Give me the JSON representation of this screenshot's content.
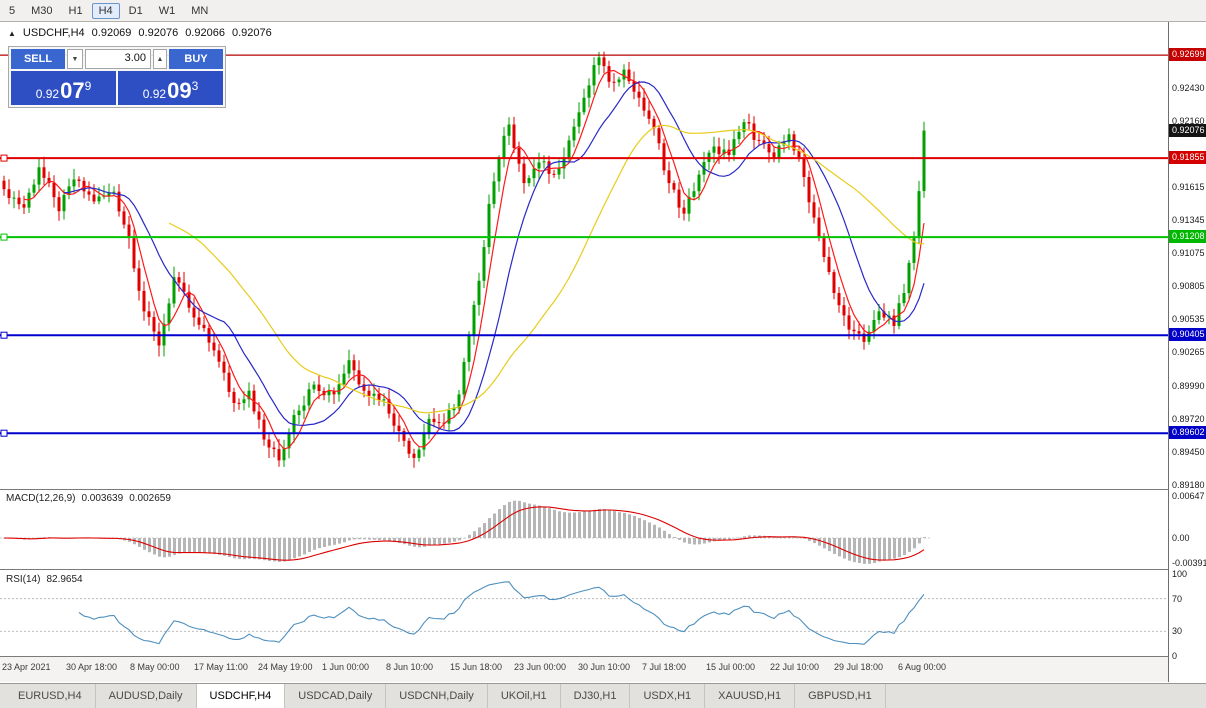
{
  "toolbar": {
    "timeframes": [
      {
        "label": "5",
        "active": false
      },
      {
        "label": "M30",
        "active": false
      },
      {
        "label": "H1",
        "active": false
      },
      {
        "label": "H4",
        "active": true
      },
      {
        "label": "D1",
        "active": false
      },
      {
        "label": "W1",
        "active": false
      },
      {
        "label": "MN",
        "active": false
      }
    ]
  },
  "chart_header": {
    "symbol": "USDCHF,H4",
    "open": "0.92069",
    "high": "0.92076",
    "low": "0.92066",
    "close": "0.92076"
  },
  "trade_panel": {
    "sell_label": "SELL",
    "buy_label": "BUY",
    "volume": "3.00",
    "sell_price": {
      "prefix": "0.92",
      "big": "07",
      "sup": "9"
    },
    "buy_price": {
      "prefix": "0.92",
      "big": "09",
      "sup": "3"
    }
  },
  "price_axis": {
    "ticks": [
      "0.92430",
      "0.92160",
      "0.91615",
      "0.91345",
      "0.91075",
      "0.90805",
      "0.90535",
      "0.90265",
      "0.89990",
      "0.89720",
      "0.89450",
      "0.89180"
    ],
    "badges": [
      {
        "value": "0.92699",
        "color": "#c40000"
      },
      {
        "value": "0.92076",
        "color": "#141414"
      },
      {
        "value": "0.91855",
        "color": "#d40000"
      },
      {
        "value": "0.91208",
        "color": "#00b800"
      },
      {
        "value": "0.90405",
        "color": "#0000c8"
      },
      {
        "value": "0.89602",
        "color": "#0000c8"
      }
    ]
  },
  "hlines": [
    {
      "value": 0.92699,
      "color": "#b40000",
      "width": 1.2,
      "handle": false
    },
    {
      "value": 0.91855,
      "color": "#e00000",
      "width": 2,
      "handle": true
    },
    {
      "value": 0.91208,
      "color": "#00c400",
      "width": 2,
      "handle": true
    },
    {
      "value": 0.90405,
      "color": "#0000cd",
      "width": 2,
      "handle": true
    },
    {
      "value": 0.89602,
      "color": "#0000cd",
      "width": 2,
      "handle": true
    }
  ],
  "macd": {
    "label": "MACD(12,26,9)",
    "value_main": "0.003639",
    "value_signal": "0.002659",
    "axis": [
      "0.00647",
      "0.00",
      "-0.00391"
    ]
  },
  "rsi": {
    "label": "RSI(14)",
    "value": "82.9654",
    "axis": [
      "100",
      "70",
      "30",
      "0"
    ],
    "levels": [
      70,
      30
    ]
  },
  "time_axis": {
    "labels": [
      "23 Apr 2021",
      "30 Apr 18:00",
      "8 May 00:00",
      "17 May 11:00",
      "24 May 19:00",
      "1 Jun 00:00",
      "8 Jun 10:00",
      "15 Jun 18:00",
      "23 Jun 00:00",
      "30 Jun 10:00",
      "7 Jul 18:00",
      "15 Jul 00:00",
      "22 Jul 10:00",
      "29 Jul 18:00",
      "6 Aug 00:00"
    ]
  },
  "tabs": {
    "items": [
      {
        "label": "EURUSD,H4",
        "active": false
      },
      {
        "label": "AUDUSD,Daily",
        "active": false
      },
      {
        "label": "USDCHF,H4",
        "active": true
      },
      {
        "label": "USDCAD,Daily",
        "active": false
      },
      {
        "label": "USDCNH,Daily",
        "active": false
      },
      {
        "label": "UKOil,H1",
        "active": false
      },
      {
        "label": "DJ30,H1",
        "active": false
      },
      {
        "label": "USDX,H1",
        "active": false
      },
      {
        "label": "XAUUSD,H1",
        "active": false
      },
      {
        "label": "GBPUSD,H1",
        "active": false
      }
    ]
  },
  "chart_data": {
    "type": "candlestick",
    "symbol": "USDCHF",
    "timeframe": "H4",
    "num_candles": 185,
    "y_range": [
      0.89145,
      0.92937
    ],
    "price_anchors": [
      [
        0,
        0.916
      ],
      [
        4,
        0.9145
      ],
      [
        7,
        0.9178
      ],
      [
        11,
        0.9142
      ],
      [
        14,
        0.9168
      ],
      [
        18,
        0.915
      ],
      [
        22,
        0.9158
      ],
      [
        25,
        0.912
      ],
      [
        28,
        0.906
      ],
      [
        31,
        0.9032
      ],
      [
        34,
        0.9088
      ],
      [
        38,
        0.9055
      ],
      [
        42,
        0.9028
      ],
      [
        46,
        0.8985
      ],
      [
        49,
        0.8995
      ],
      [
        52,
        0.8955
      ],
      [
        55,
        0.8938
      ],
      [
        58,
        0.8975
      ],
      [
        62,
        0.9
      ],
      [
        66,
        0.8992
      ],
      [
        69,
        0.902
      ],
      [
        72,
        0.8995
      ],
      [
        76,
        0.8988
      ],
      [
        79,
        0.8962
      ],
      [
        82,
        0.894
      ],
      [
        85,
        0.8972
      ],
      [
        88,
        0.8968
      ],
      [
        91,
        0.8992
      ],
      [
        93,
        0.904
      ],
      [
        95,
        0.9085
      ],
      [
        97,
        0.9148
      ],
      [
        99,
        0.9185
      ],
      [
        101,
        0.9213
      ],
      [
        104,
        0.9165
      ],
      [
        107,
        0.9182
      ],
      [
        110,
        0.9172
      ],
      [
        113,
        0.92
      ],
      [
        116,
        0.9235
      ],
      [
        119,
        0.9268
      ],
      [
        121,
        0.9248
      ],
      [
        124,
        0.9258
      ],
      [
        127,
        0.9235
      ],
      [
        130,
        0.921
      ],
      [
        133,
        0.9165
      ],
      [
        136,
        0.914
      ],
      [
        139,
        0.9172
      ],
      [
        142,
        0.9195
      ],
      [
        145,
        0.9188
      ],
      [
        148,
        0.9215
      ],
      [
        151,
        0.92
      ],
      [
        154,
        0.9185
      ],
      [
        157,
        0.9205
      ],
      [
        160,
        0.917
      ],
      [
        163,
        0.912
      ],
      [
        166,
        0.9075
      ],
      [
        169,
        0.9045
      ],
      [
        172,
        0.9035
      ],
      [
        175,
        0.906
      ],
      [
        178,
        0.9048
      ],
      [
        180,
        0.9075
      ],
      [
        182,
        0.912
      ],
      [
        184,
        0.9208
      ]
    ],
    "overlays": [
      {
        "name": "MA-fast",
        "period": 5,
        "color": "#ff1a1a"
      },
      {
        "name": "MA-mid",
        "period": 13,
        "color": "#2929c8"
      },
      {
        "name": "MA-slow",
        "period": 34,
        "color": "#e8cc1a"
      }
    ],
    "colors": {
      "up": "#00a000",
      "down": "#e00000",
      "macd_hist": "#b6b6b6",
      "macd_signal": "#dd0000",
      "rsi_line": "#4e8fbe"
    },
    "indicators": [
      {
        "name": "MACD",
        "params": [
          12,
          26,
          9
        ],
        "range": [
          -0.0047,
          0.0074
        ]
      },
      {
        "name": "RSI",
        "params": [
          14
        ],
        "range": [
          0,
          100
        ]
      }
    ]
  }
}
